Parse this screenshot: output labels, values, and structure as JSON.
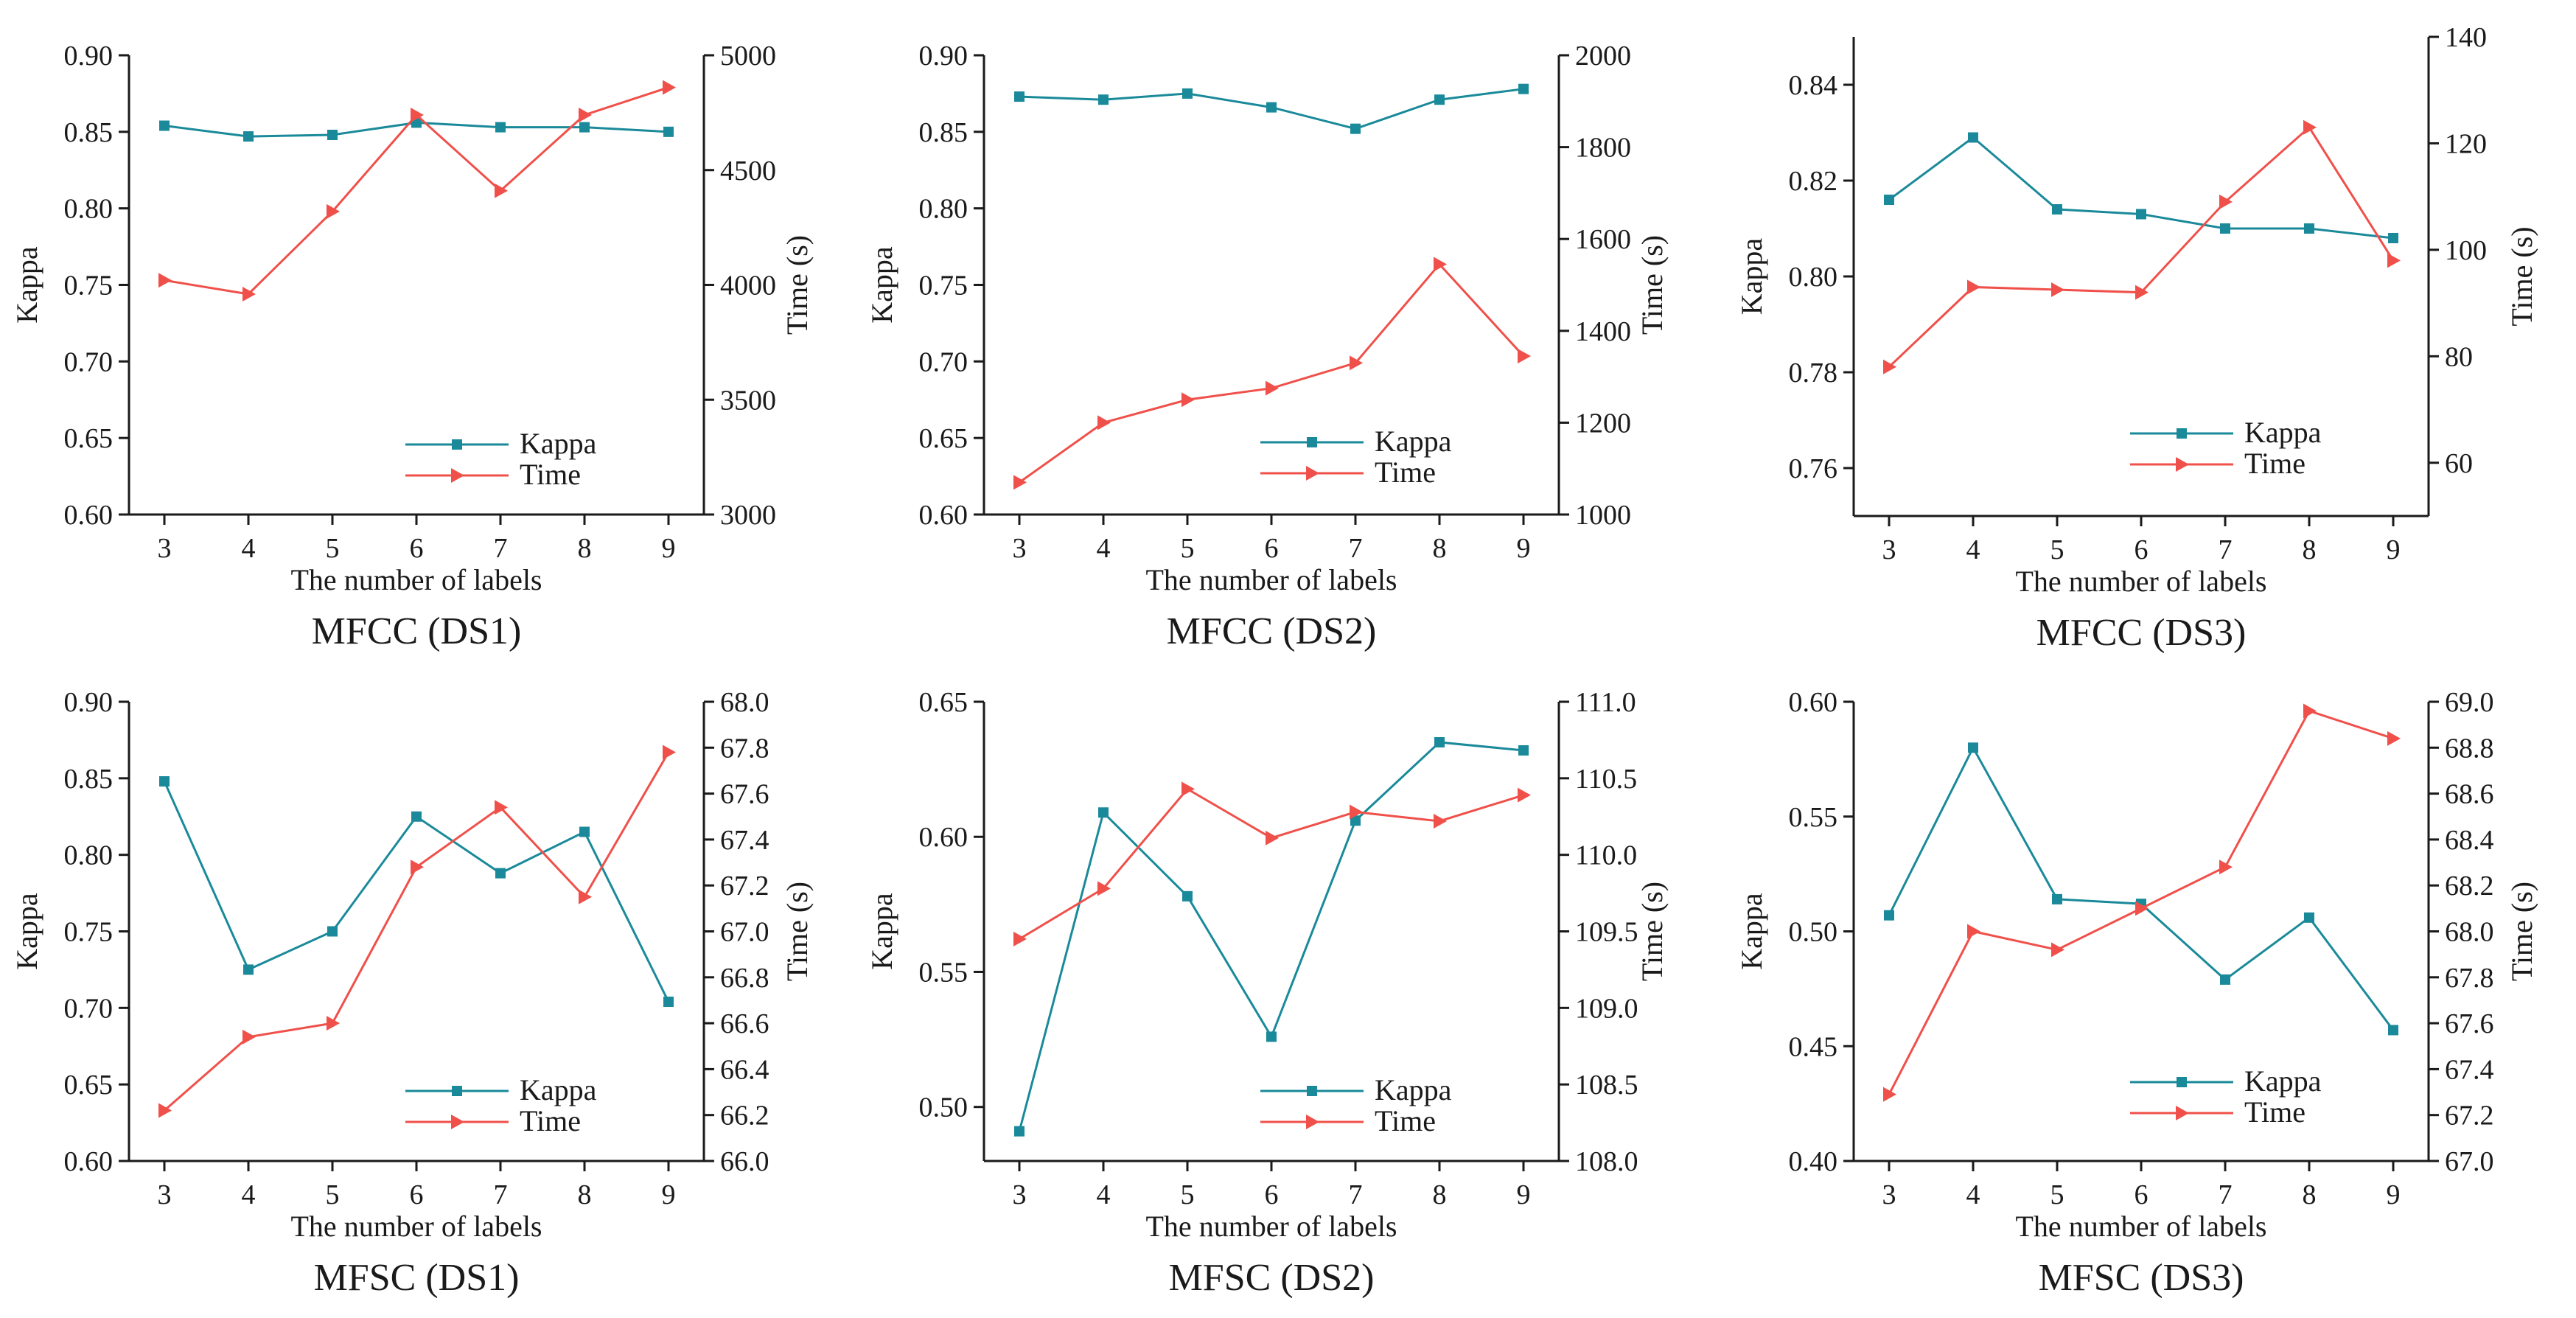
{
  "figure": {
    "colors": {
      "kappa": "#1a8a9a",
      "time": "#f0504a",
      "axis": "#1a1a1a"
    }
  },
  "chart_data": [
    {
      "type": "line",
      "caption": "MFCC (DS1)",
      "xlabel": "The number of labels",
      "ylabel_left": "Kappa",
      "ylabel_right": "Time (s)",
      "x": [
        3,
        4,
        5,
        6,
        7,
        8,
        9
      ],
      "ylim_left": [
        0.6,
        0.9
      ],
      "yticks_left": [
        "0.60",
        "0.65",
        "0.70",
        "0.75",
        "0.80",
        "0.85",
        "0.90"
      ],
      "ylim_right": [
        3000,
        5000
      ],
      "yticks_right": [
        "3000",
        "3500",
        "4000",
        "4500",
        "5000"
      ],
      "legend": [
        "Kappa",
        "Time"
      ],
      "series": [
        {
          "name": "Kappa",
          "axis": "left",
          "values": [
            0.854,
            0.847,
            0.848,
            0.856,
            0.853,
            0.853,
            0.85
          ]
        },
        {
          "name": "Time",
          "axis": "right",
          "values": [
            4020,
            3960,
            4320,
            4740,
            4410,
            4740,
            4860
          ]
        }
      ]
    },
    {
      "type": "line",
      "caption": "MFCC (DS2)",
      "xlabel": "The number of labels",
      "ylabel_left": "Kappa",
      "ylabel_right": "Time (s)",
      "x": [
        3,
        4,
        5,
        6,
        7,
        8,
        9
      ],
      "ylim_left": [
        0.6,
        0.9
      ],
      "yticks_left": [
        "0.60",
        "0.65",
        "0.70",
        "0.75",
        "0.80",
        "0.85",
        "0.90"
      ],
      "ylim_right": [
        1000,
        2000
      ],
      "yticks_right": [
        "1000",
        "1200",
        "1400",
        "1600",
        "1800",
        "2000"
      ],
      "legend": [
        "Kappa",
        "Time"
      ],
      "series": [
        {
          "name": "Kappa",
          "axis": "left",
          "values": [
            0.873,
            0.871,
            0.875,
            0.866,
            0.852,
            0.871,
            0.878
          ]
        },
        {
          "name": "Time",
          "axis": "right",
          "values": [
            1070,
            1200,
            1250,
            1275,
            1330,
            1545,
            1345
          ]
        }
      ]
    },
    {
      "type": "line",
      "caption": "MFCC (DS3)",
      "xlabel": "The number of labels",
      "ylabel_left": "Kappa",
      "ylabel_right": "Time (s)",
      "x": [
        3,
        4,
        5,
        6,
        7,
        8,
        9
      ],
      "ylim_left": [
        0.75,
        0.85
      ],
      "yticks_left": [
        "0.76",
        "0.78",
        "0.80",
        "0.82",
        "0.84"
      ],
      "ylim_right": [
        50,
        140
      ],
      "yticks_right": [
        "60",
        "80",
        "100",
        "120",
        "140"
      ],
      "legend": [
        "Kappa",
        "Time"
      ],
      "series": [
        {
          "name": "Kappa",
          "axis": "left",
          "values": [
            0.816,
            0.829,
            0.814,
            0.813,
            0.81,
            0.81,
            0.808
          ]
        },
        {
          "name": "Time",
          "axis": "right",
          "values": [
            78,
            93,
            92.5,
            92,
            109,
            123,
            98
          ]
        }
      ]
    },
    {
      "type": "line",
      "caption": "MFSC (DS1)",
      "xlabel": "The number of labels",
      "ylabel_left": "Kappa",
      "ylabel_right": "Time (s)",
      "x": [
        3,
        4,
        5,
        6,
        7,
        8,
        9
      ],
      "ylim_left": [
        0.6,
        0.9
      ],
      "yticks_left": [
        "0.60",
        "0.65",
        "0.70",
        "0.75",
        "0.80",
        "0.85",
        "0.90"
      ],
      "ylim_right": [
        66.0,
        68.0
      ],
      "yticks_right": [
        "66.0",
        "66.2",
        "66.4",
        "66.6",
        "66.8",
        "67.0",
        "67.2",
        "67.4",
        "67.6",
        "67.8",
        "68.0"
      ],
      "legend": [
        "Kappa",
        "Time"
      ],
      "series": [
        {
          "name": "Kappa",
          "axis": "left",
          "values": [
            0.848,
            0.725,
            0.75,
            0.825,
            0.788,
            0.815,
            0.704
          ]
        },
        {
          "name": "Time",
          "axis": "right",
          "values": [
            66.22,
            66.54,
            66.6,
            67.28,
            67.54,
            67.15,
            67.78
          ]
        }
      ]
    },
    {
      "type": "line",
      "caption": "MFSC (DS2)",
      "xlabel": "The number of labels",
      "ylabel_left": "Kappa",
      "ylabel_right": "Time (s)",
      "x": [
        3,
        4,
        5,
        6,
        7,
        8,
        9
      ],
      "ylim_left": [
        0.48,
        0.65
      ],
      "yticks_left": [
        "0.50",
        "0.55",
        "0.60",
        "0.65"
      ],
      "ylim_right": [
        108.0,
        111.0
      ],
      "yticks_right": [
        "108.0",
        "108.5",
        "109.0",
        "109.5",
        "110.0",
        "110.5",
        "111.0"
      ],
      "legend": [
        "Kappa",
        "Time"
      ],
      "series": [
        {
          "name": "Kappa",
          "axis": "left",
          "values": [
            0.491,
            0.609,
            0.578,
            0.526,
            0.606,
            0.635,
            0.632
          ]
        },
        {
          "name": "Time",
          "axis": "right",
          "values": [
            109.45,
            109.78,
            110.43,
            110.11,
            110.28,
            110.22,
            110.39
          ]
        }
      ]
    },
    {
      "type": "line",
      "caption": "MFSC (DS3)",
      "xlabel": "The number of labels",
      "ylabel_left": "Kappa",
      "ylabel_right": "Time (s)",
      "x": [
        3,
        4,
        5,
        6,
        7,
        8,
        9
      ],
      "ylim_left": [
        0.4,
        0.6
      ],
      "yticks_left": [
        "0.40",
        "0.45",
        "0.50",
        "0.55",
        "0.60"
      ],
      "ylim_right": [
        67.0,
        69.0
      ],
      "yticks_right": [
        "67.0",
        "67.2",
        "67.4",
        "67.6",
        "67.8",
        "68.0",
        "68.2",
        "68.4",
        "68.6",
        "68.8",
        "69.0"
      ],
      "legend": [
        "Kappa",
        "Time"
      ],
      "series": [
        {
          "name": "Kappa",
          "axis": "left",
          "values": [
            0.507,
            0.58,
            0.514,
            0.512,
            0.479,
            0.506,
            0.457
          ]
        },
        {
          "name": "Time",
          "axis": "right",
          "values": [
            67.29,
            68.0,
            67.92,
            68.1,
            68.28,
            68.96,
            68.84
          ]
        }
      ]
    }
  ]
}
